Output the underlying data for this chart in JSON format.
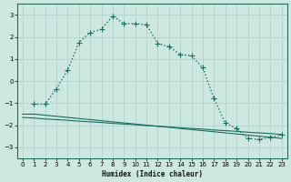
{
  "xlabel": "Humidex (Indice chaleur)",
  "background_color": "#cce8e0",
  "grid_color": "#aacfc8",
  "line_color": "#1a6e60",
  "xlim": [
    -0.5,
    23.5
  ],
  "ylim": [
    -3.5,
    3.5
  ],
  "xticks": [
    0,
    1,
    2,
    3,
    4,
    5,
    6,
    7,
    8,
    9,
    10,
    11,
    12,
    13,
    14,
    15,
    16,
    17,
    18,
    19,
    20,
    21,
    22,
    23
  ],
  "yticks": [
    -3,
    -2,
    -1,
    0,
    1,
    2,
    3
  ],
  "curve1_x": [
    1,
    2,
    3,
    4,
    5,
    6,
    7,
    8,
    9,
    10,
    11,
    12,
    13,
    14,
    15,
    16,
    17,
    18,
    19,
    20,
    21,
    22,
    23
  ],
  "curve1_y": [
    -1.05,
    -1.05,
    -0.35,
    0.5,
    1.75,
    2.2,
    2.35,
    2.95,
    2.6,
    2.6,
    2.55,
    1.7,
    1.55,
    1.2,
    1.15,
    0.6,
    -0.8,
    -1.9,
    -2.15,
    -2.6,
    -2.65,
    -2.55,
    -2.45
  ],
  "curve2_x": [
    0,
    1,
    2,
    3,
    4,
    5,
    6,
    7,
    8,
    9,
    10,
    11,
    12,
    13,
    14,
    15,
    16,
    17,
    18,
    19,
    20,
    21,
    22,
    23
  ],
  "curve2_y": [
    -1.5,
    -1.5,
    -1.55,
    -1.6,
    -1.65,
    -1.7,
    -1.75,
    -1.8,
    -1.85,
    -1.9,
    -1.95,
    -2.0,
    -2.05,
    -2.1,
    -2.15,
    -2.2,
    -2.25,
    -2.3,
    -2.35,
    -2.4,
    -2.45,
    -2.5,
    -2.55,
    -2.6
  ],
  "curve3_x": [
    0,
    1,
    2,
    3,
    4,
    5,
    6,
    7,
    8,
    9,
    10,
    11,
    12,
    13,
    14,
    15,
    16,
    17,
    18,
    19,
    20,
    21,
    22,
    23
  ],
  "curve3_y": [
    -1.65,
    -1.68,
    -1.72,
    -1.75,
    -1.78,
    -1.82,
    -1.85,
    -1.88,
    -1.92,
    -1.95,
    -1.98,
    -2.02,
    -2.05,
    -2.08,
    -2.12,
    -2.15,
    -2.18,
    -2.22,
    -2.25,
    -2.28,
    -2.32,
    -2.35,
    -2.38,
    -2.42
  ]
}
